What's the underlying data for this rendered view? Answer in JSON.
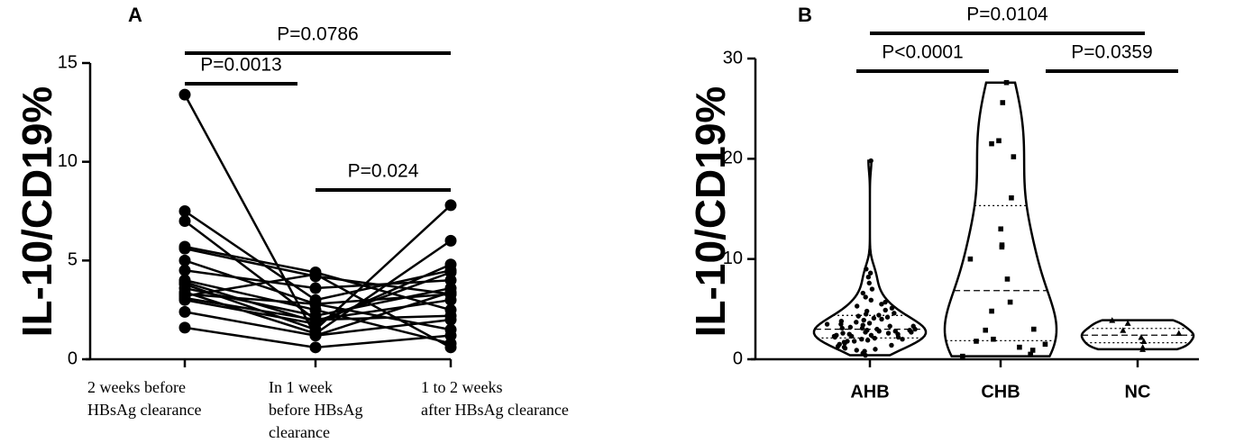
{
  "chart_data": [
    {
      "type": "paired-line",
      "title": "A",
      "y_label": "IL-10/CD19%",
      "color": "#000000",
      "categories": [
        [
          "2  weeks  before",
          "HBsAg clearance"
        ],
        [
          "In  1  week",
          "before  HBsAg",
          "clearance"
        ],
        [
          "1 to 2 weeks",
          "after HBsAg clearance"
        ]
      ],
      "series": [
        {
          "values": [
            13.4,
            1.2,
            3.4
          ]
        },
        {
          "values": [
            7.5,
            3.0,
            4.5
          ]
        },
        {
          "values": [
            7.0,
            2.0,
            3.0
          ]
        },
        {
          "values": [
            5.7,
            4.4,
            2.5
          ]
        },
        {
          "values": [
            5.6,
            4.2,
            3.3
          ]
        },
        {
          "values": [
            5.0,
            2.8,
            1.5
          ]
        },
        {
          "values": [
            4.5,
            3.6,
            4.0
          ]
        },
        {
          "values": [
            4.0,
            2.5,
            0.8
          ]
        },
        {
          "values": [
            3.8,
            1.5,
            7.8
          ]
        },
        {
          "values": [
            3.6,
            2.2,
            3.6
          ]
        },
        {
          "values": [
            3.4,
            1.3,
            6.0
          ]
        },
        {
          "values": [
            3.3,
            2.8,
            3.3
          ]
        },
        {
          "values": [
            3.1,
            2.0,
            2.2
          ]
        },
        {
          "values": [
            3.0,
            1.8,
            4.8
          ]
        },
        {
          "values": [
            2.4,
            1.2,
            2.0
          ]
        },
        {
          "values": [
            1.6,
            0.6,
            1.2
          ]
        },
        {
          "values": [
            3.2,
            4.3,
            0.6
          ]
        },
        {
          "values": [
            3.9,
            1.9,
            4.4
          ]
        }
      ],
      "ylim": [
        0,
        15
      ],
      "yticks": [
        0,
        5,
        10,
        15
      ],
      "brackets": [
        {
          "label": "P=0.0786",
          "from": 0,
          "to": 2
        },
        {
          "label": "P=0.0013",
          "from": 0,
          "to": 1
        },
        {
          "label": "P=0.024",
          "from": 1,
          "to": 2
        }
      ]
    },
    {
      "type": "violin",
      "title": "B",
      "y_label": "IL-10/CD19%",
      "color": "#000000",
      "categories": [
        "AHB",
        "CHB",
        "NC"
      ],
      "series": [
        {
          "marker": "circle",
          "values": [
            19.8,
            9.0,
            8.6,
            8.2,
            7.6,
            7.0,
            6.6,
            6.2,
            5.9,
            5.7,
            5.5,
            5.3,
            5.1,
            4.9,
            4.8,
            4.6,
            4.5,
            4.4,
            4.3,
            4.2,
            4.1,
            4.0,
            3.9,
            3.8,
            3.7,
            3.6,
            3.5,
            3.5,
            3.4,
            3.3,
            3.3,
            3.2,
            3.1,
            3.1,
            3.0,
            3.0,
            2.9,
            2.9,
            2.8,
            2.8,
            2.7,
            2.7,
            2.6,
            2.6,
            2.5,
            2.5,
            2.4,
            2.4,
            2.3,
            2.3,
            2.2,
            2.2,
            2.1,
            2.0,
            2.0,
            1.9,
            1.8,
            1.8,
            1.7,
            1.6,
            1.5,
            1.4,
            1.3,
            1.2,
            1.1,
            1.0,
            0.9,
            0.8,
            0.6,
            0.4
          ]
        },
        {
          "marker": "square",
          "values": [
            27.6,
            25.6,
            21.8,
            21.5,
            20.2,
            16.1,
            13.0,
            11.4,
            11.2,
            10.0,
            8.0,
            5.7,
            4.8,
            3.0,
            2.9,
            2.0,
            1.8,
            1.5,
            1.2,
            0.9,
            0.5,
            0.3
          ]
        },
        {
          "marker": "triangle",
          "values": [
            3.9,
            3.6,
            2.9,
            2.6,
            2.2,
            1.8,
            1.2,
            1.0
          ]
        }
      ],
      "ylim": [
        0,
        30
      ],
      "yticks": [
        0,
        10,
        20,
        30
      ],
      "brackets": [
        {
          "label": "P=0.0104",
          "from": 0,
          "to": 2
        },
        {
          "label": "P<0.0001",
          "from": 0,
          "to": 1
        },
        {
          "label": "P=0.0359",
          "from": 1,
          "to": 2
        }
      ]
    }
  ]
}
